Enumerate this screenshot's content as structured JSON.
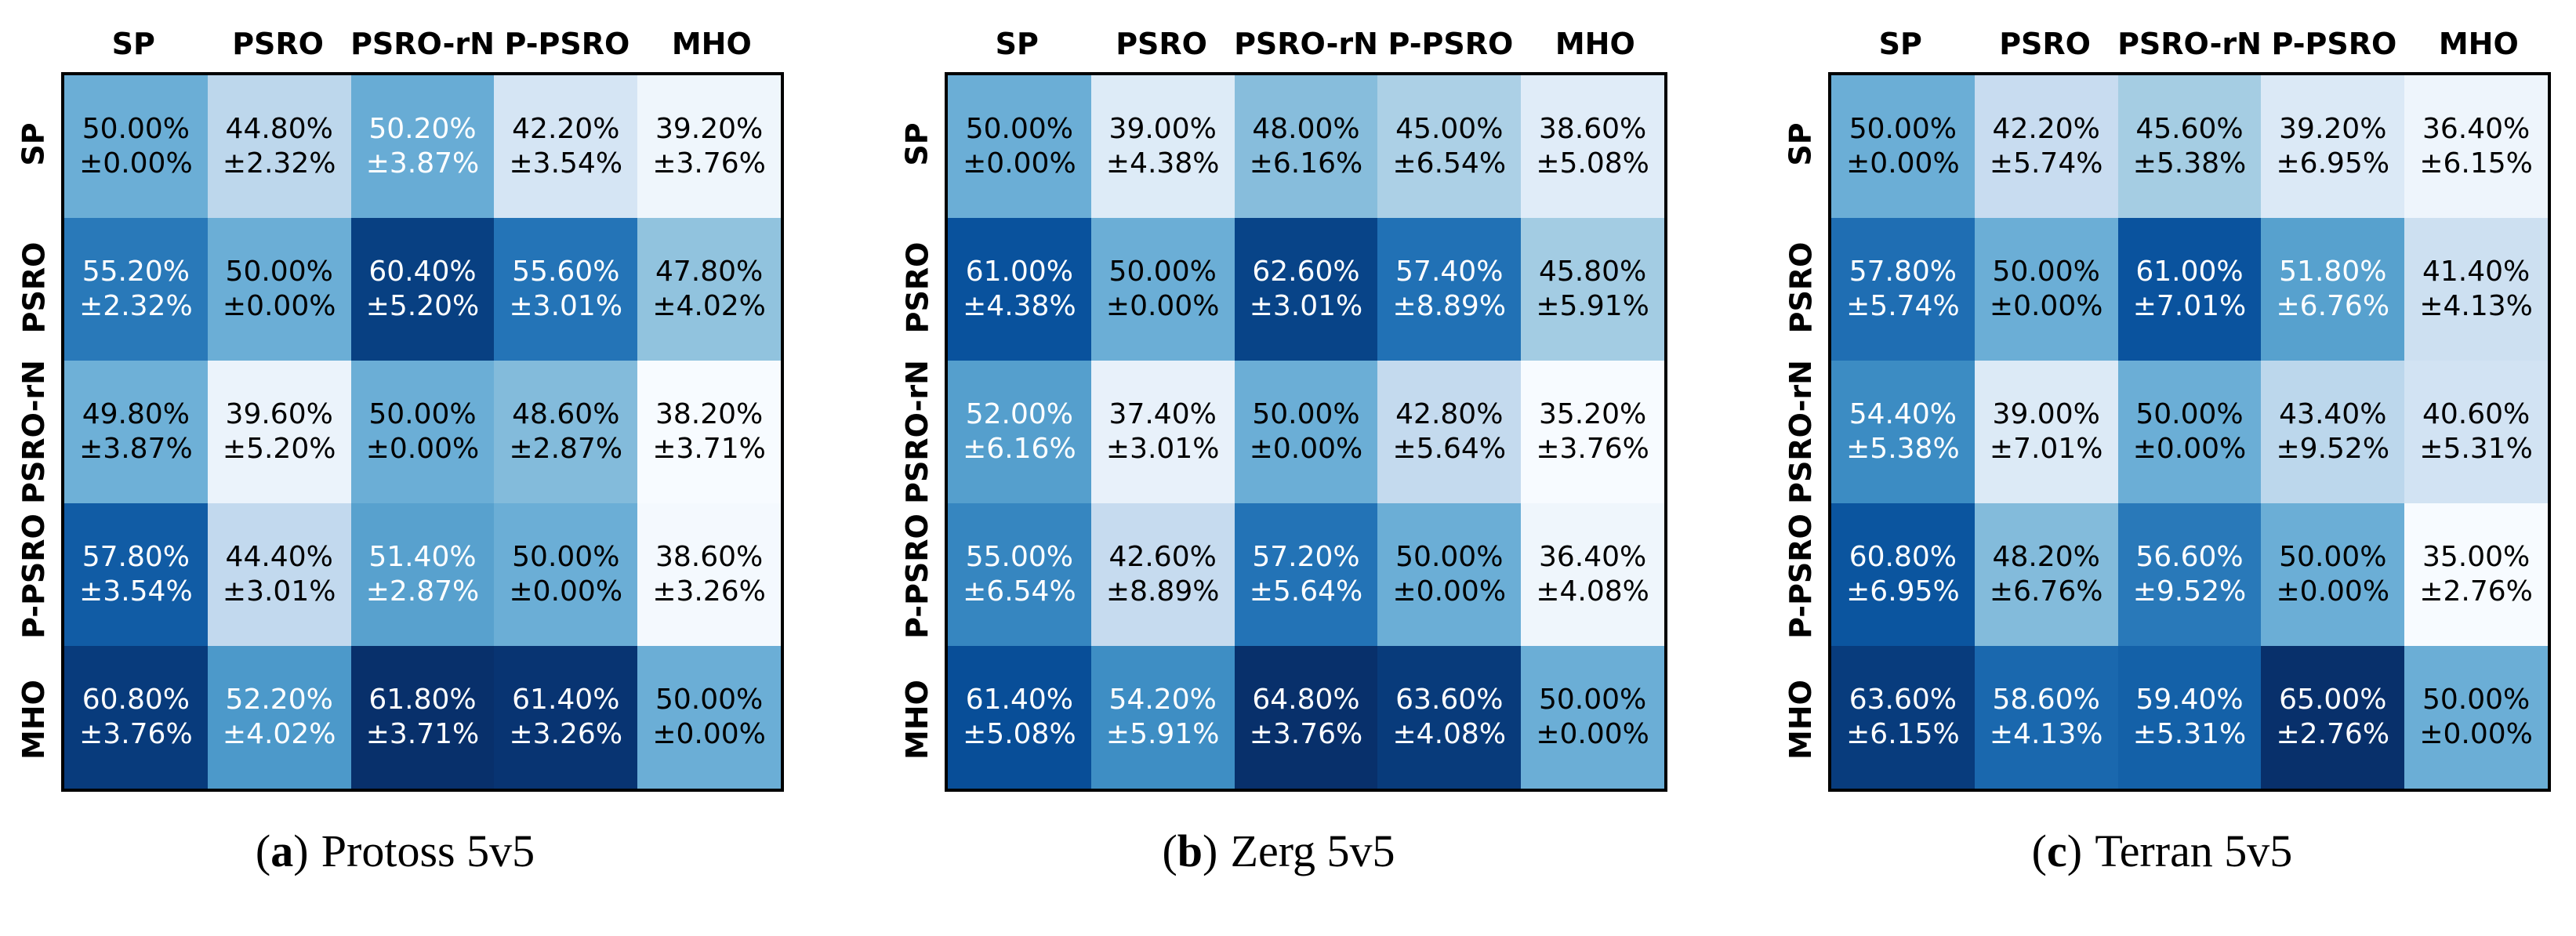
{
  "figure": {
    "background": "#ffffff",
    "matrix_border_color": "#000000",
    "colormap": {
      "name": "Blues",
      "anchors": [
        "#f7fbff",
        "#deebf7",
        "#c6dbef",
        "#9ecae1",
        "#6baed6",
        "#4292c6",
        "#2171b5",
        "#08519c",
        "#08306b"
      ],
      "normalization": "per-matrix min/max"
    },
    "cell_text_colors": {
      "dark": "#000000",
      "light": "#ffffff",
      "white_text_when_value_above": 50
    }
  },
  "chart_data": [
    {
      "type": "heatmap",
      "caption_label": "a",
      "title": "Protoss 5v5",
      "columns": [
        "SP",
        "PSRO",
        "PSRO-rN",
        "P-PSRO",
        "MHO"
      ],
      "rows": [
        "SP",
        "PSRO",
        "PSRO-rN",
        "P-PSRO",
        "MHO"
      ],
      "values": [
        [
          50.0,
          44.8,
          50.2,
          42.2,
          39.2
        ],
        [
          55.2,
          50.0,
          60.4,
          55.6,
          47.8
        ],
        [
          49.8,
          39.6,
          50.0,
          48.6,
          38.2
        ],
        [
          57.8,
          44.4,
          51.4,
          50.0,
          38.6
        ],
        [
          60.8,
          52.2,
          61.8,
          61.4,
          50.0
        ]
      ],
      "stds": [
        [
          0.0,
          2.32,
          3.87,
          3.54,
          3.76
        ],
        [
          2.32,
          0.0,
          5.2,
          3.01,
          4.02
        ],
        [
          3.87,
          5.2,
          0.0,
          2.87,
          3.71
        ],
        [
          3.54,
          3.01,
          2.87,
          0.0,
          3.26
        ],
        [
          3.76,
          4.02,
          3.71,
          3.26,
          0.0
        ]
      ]
    },
    {
      "type": "heatmap",
      "caption_label": "b",
      "title": "Zerg 5v5",
      "columns": [
        "SP",
        "PSRO",
        "PSRO-rN",
        "P-PSRO",
        "MHO"
      ],
      "rows": [
        "SP",
        "PSRO",
        "PSRO-rN",
        "P-PSRO",
        "MHO"
      ],
      "values": [
        [
          50.0,
          39.0,
          48.0,
          45.0,
          38.6
        ],
        [
          61.0,
          50.0,
          62.6,
          57.4,
          45.8
        ],
        [
          52.0,
          37.4,
          50.0,
          42.8,
          35.2
        ],
        [
          55.0,
          42.6,
          57.2,
          50.0,
          36.4
        ],
        [
          61.4,
          54.2,
          64.8,
          63.6,
          50.0
        ]
      ],
      "stds": [
        [
          0.0,
          4.38,
          6.16,
          6.54,
          5.08
        ],
        [
          4.38,
          0.0,
          3.01,
          8.89,
          5.91
        ],
        [
          6.16,
          3.01,
          0.0,
          5.64,
          3.76
        ],
        [
          6.54,
          8.89,
          5.64,
          0.0,
          4.08
        ],
        [
          5.08,
          5.91,
          3.76,
          4.08,
          0.0
        ]
      ]
    },
    {
      "type": "heatmap",
      "caption_label": "c",
      "title": "Terran 5v5",
      "columns": [
        "SP",
        "PSRO",
        "PSRO-rN",
        "P-PSRO",
        "MHO"
      ],
      "rows": [
        "SP",
        "PSRO",
        "PSRO-rN",
        "P-PSRO",
        "MHO"
      ],
      "values": [
        [
          50.0,
          42.2,
          45.6,
          39.2,
          36.4
        ],
        [
          57.8,
          50.0,
          61.0,
          51.8,
          41.4
        ],
        [
          54.4,
          39.0,
          50.0,
          43.4,
          40.6
        ],
        [
          60.8,
          48.2,
          56.6,
          50.0,
          35.0
        ],
        [
          63.6,
          58.6,
          59.4,
          65.0,
          50.0
        ]
      ],
      "stds": [
        [
          0.0,
          5.74,
          5.38,
          6.95,
          6.15
        ],
        [
          5.74,
          0.0,
          7.01,
          6.76,
          4.13
        ],
        [
          5.38,
          7.01,
          0.0,
          9.52,
          5.31
        ],
        [
          6.95,
          6.76,
          9.52,
          0.0,
          2.76
        ],
        [
          6.15,
          4.13,
          5.31,
          2.76,
          0.0
        ]
      ]
    }
  ]
}
